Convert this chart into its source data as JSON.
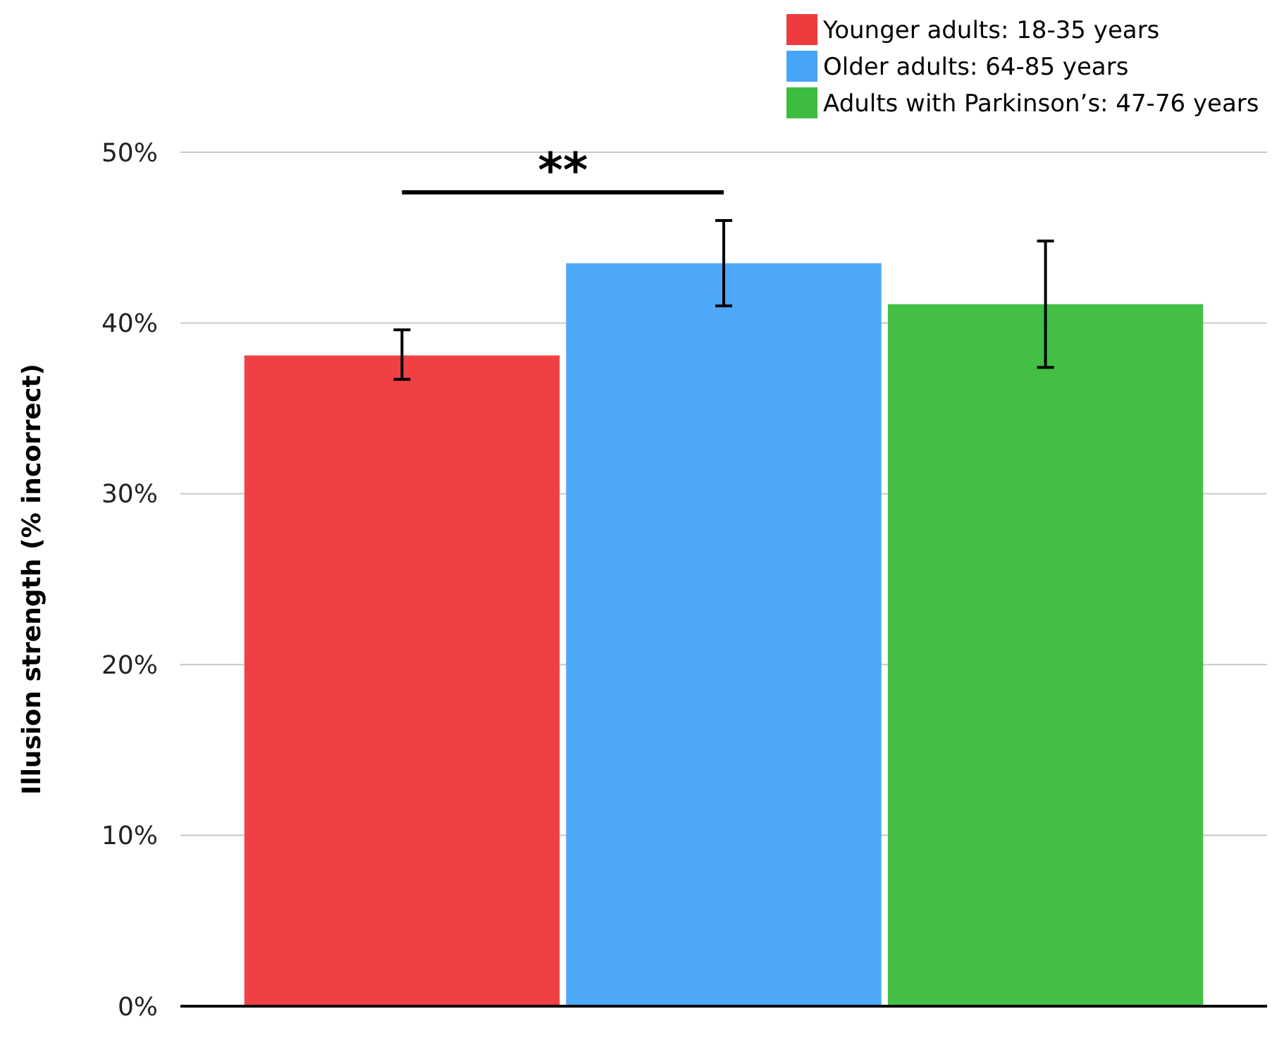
{
  "chart_data": {
    "type": "bar",
    "ylabel": "Illusion strength (% incorrect)",
    "categories": [
      null
    ],
    "series": [
      {
        "name": "Younger adults: 18-35 years",
        "color": "#ee3b3e",
        "values": [
          38.1
        ],
        "errors": [
          [
            36.7,
            39.6
          ]
        ]
      },
      {
        "name": "Older adults: 64-85 years",
        "color": "#47a5f8",
        "values": [
          43.5
        ],
        "errors": [
          [
            41.0,
            46.0
          ]
        ]
      },
      {
        "name": "Adults with Parkinson’s: 47-76 years",
        "color": "#3dbd3f",
        "values": [
          41.1
        ],
        "errors": [
          [
            37.4,
            44.8
          ]
        ]
      }
    ],
    "ylim": [
      0,
      50
    ],
    "yticks": [
      {
        "value": 0,
        "label": "0%"
      },
      {
        "value": 10,
        "label": "10%"
      },
      {
        "value": 20,
        "label": "20%"
      },
      {
        "value": 30,
        "label": "30%"
      },
      {
        "value": 40,
        "label": "40%"
      },
      {
        "value": 50,
        "label": "50%"
      }
    ],
    "grid": "y",
    "legend": "top right",
    "annotations": [
      "**"
    ]
  }
}
